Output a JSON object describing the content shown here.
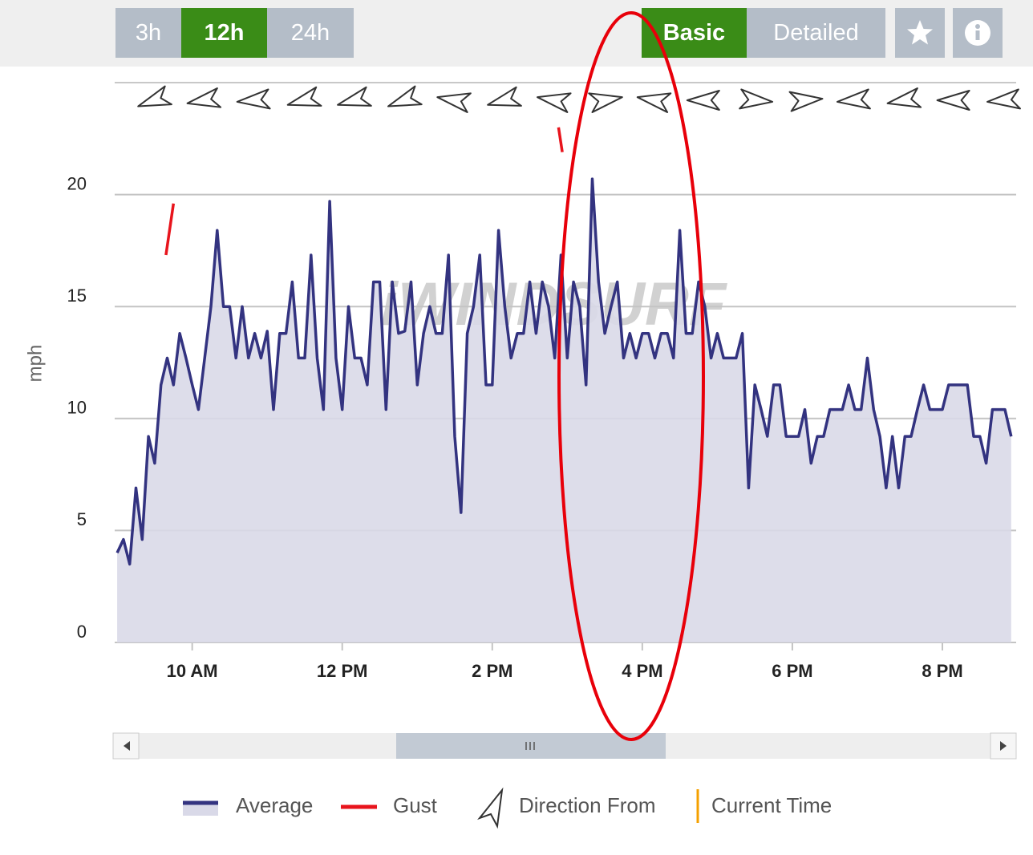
{
  "controls": {
    "ranges": [
      "3h",
      "12h",
      "24h"
    ],
    "selected_range": "12h",
    "views": [
      "Basic",
      "Detailed"
    ],
    "selected_view": "Basic"
  },
  "chart_data": {
    "type": "line",
    "y_label": "mph",
    "watermark": "iWINDSURF",
    "x": [
      540,
      545,
      550,
      555,
      560,
      565,
      570,
      575,
      580,
      585,
      590,
      595,
      600,
      605,
      610,
      615,
      620,
      625,
      630,
      635,
      640,
      645,
      650,
      655,
      660,
      665,
      670,
      675,
      680,
      685,
      690,
      695,
      700,
      705,
      710,
      715,
      720,
      725,
      730,
      735,
      740,
      745,
      750,
      755,
      760,
      765,
      770,
      775,
      780,
      785,
      790,
      795,
      800,
      805,
      810,
      815,
      820,
      825,
      830,
      835,
      840,
      845,
      850,
      855,
      860,
      865,
      870,
      875,
      880,
      885,
      890,
      895,
      900,
      905,
      910,
      915,
      920,
      925,
      930,
      935,
      940,
      945,
      950,
      955,
      960,
      965,
      970,
      975,
      980,
      985,
      990,
      995,
      1000,
      1005,
      1010,
      1015,
      1020,
      1025,
      1030,
      1035,
      1040,
      1045,
      1050,
      1055,
      1060,
      1065,
      1070,
      1075,
      1080,
      1085,
      1090,
      1095,
      1100,
      1105,
      1110,
      1115,
      1120,
      1125,
      1130,
      1135,
      1140,
      1145,
      1150,
      1155,
      1160,
      1165,
      1170,
      1175,
      1180,
      1185,
      1190,
      1195,
      1200,
      1205,
      1210,
      1215,
      1220,
      1225,
      1230,
      1235,
      1240,
      1245,
      1250,
      1255
    ],
    "series": [
      {
        "name": "Average",
        "color": "#333380",
        "fill_color": "#d9d9e8",
        "area": true,
        "values": [
          4.0,
          4.6,
          3.5,
          6.9,
          4.6,
          9.2,
          8.0,
          11.5,
          12.7,
          11.5,
          13.8,
          12.7,
          11.5,
          10.4,
          12.7,
          15,
          18.4,
          15,
          15,
          12.7,
          15,
          12.7,
          13.8,
          12.7,
          13.9,
          10.4,
          13.8,
          13.8,
          16.1,
          12.7,
          12.7,
          17.3,
          12.7,
          10.4,
          19.7,
          12.7,
          10.4,
          15,
          12.7,
          12.7,
          11.5,
          16.1,
          16.1,
          10.4,
          16.1,
          13.8,
          13.9,
          16.1,
          11.5,
          13.8,
          15,
          13.8,
          13.8,
          17.3,
          9.2,
          5.8,
          13.8,
          15,
          17.3,
          11.5,
          11.5,
          18.4,
          15,
          12.7,
          13.8,
          13.8,
          16.1,
          13.8,
          16.1,
          15,
          12.7,
          17.3,
          12.7,
          16.1,
          15,
          11.5,
          20.7,
          16.1,
          13.8,
          15,
          16.1,
          12.7,
          13.8,
          12.7,
          13.8,
          13.8,
          12.7,
          13.8,
          13.8,
          12.7,
          18.4,
          13.8,
          13.8,
          16.1,
          15,
          12.7,
          13.8,
          12.7,
          12.7,
          12.7,
          13.8,
          6.9,
          11.5,
          10.4,
          9.2,
          11.5,
          11.5,
          9.2,
          9.2,
          9.2,
          10.4,
          8.0,
          9.2,
          9.2,
          10.4,
          10.4,
          10.4,
          11.5,
          10.4,
          10.4,
          12.7,
          10.4,
          9.2,
          6.9,
          9.2,
          6.9,
          9.2,
          9.2,
          10.4,
          11.5,
          10.4,
          10.4,
          10.4,
          11.5,
          11.5,
          11.5,
          11.5,
          9.2,
          9.2,
          8.0,
          10.4,
          10.4,
          10.4,
          9.2
        ]
      },
      {
        "name": "Gust",
        "color": "#e8141c",
        "area": false,
        "x": [
          579,
          585,
          890,
          893,
          896
        ],
        "values": [
          17.3,
          19.6,
          null,
          23.0,
          21.9
        ]
      }
    ],
    "direction": {
      "name": "Direction From",
      "x": [
        570,
        610,
        650,
        690,
        730,
        770,
        810,
        850,
        890,
        930,
        970,
        1010,
        1050,
        1090,
        1130,
        1170,
        1210,
        1250
      ],
      "values": [
        250,
        260,
        265,
        255,
        255,
        250,
        280,
        255,
        280,
        80,
        280,
        270,
        95,
        85,
        265,
        260,
        270,
        265
      ]
    },
    "current_time": {
      "name": "Current Time",
      "color": "#f5a000"
    },
    "xlim": [
      538,
      1259
    ],
    "xticks": [
      {
        "value": 600,
        "label": "10 AM"
      },
      {
        "value": 720,
        "label": "12 PM"
      },
      {
        "value": 840,
        "label": "2 PM"
      },
      {
        "value": 960,
        "label": "4 PM"
      },
      {
        "value": 1080,
        "label": "6 PM"
      },
      {
        "value": 1200,
        "label": "8 PM"
      }
    ],
    "ylim": [
      0,
      25
    ],
    "yticks": [
      0,
      5,
      10,
      15,
      20
    ],
    "grid": true
  }
}
